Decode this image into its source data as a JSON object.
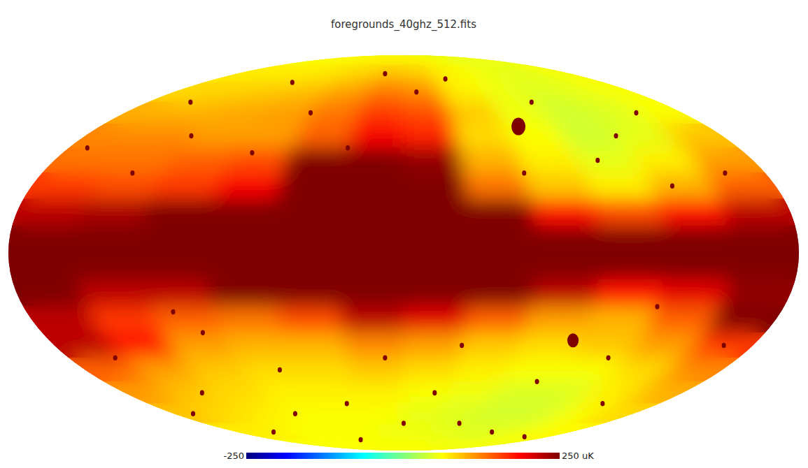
{
  "chart_data": {
    "type": "heatmap",
    "title": "foregrounds_40ghz_512.fits",
    "lon_edges": [
      180,
      150,
      120,
      90,
      60,
      30,
      0,
      -30,
      -60,
      -90,
      -120,
      -150,
      -180
    ],
    "lat_edges": [
      90,
      80,
      70,
      60,
      50,
      40,
      30,
      20,
      10,
      0,
      -10,
      -20,
      -30,
      -40,
      -50,
      -60,
      -70,
      -80,
      -90
    ],
    "cells": [
      [
        60,
        60,
        60,
        60,
        60,
        60,
        60,
        60,
        55,
        50,
        50,
        55
      ],
      [
        70,
        70,
        70,
        75,
        85,
        95,
        90,
        70,
        60,
        50,
        50,
        60
      ],
      [
        80,
        85,
        90,
        95,
        110,
        130,
        120,
        70,
        55,
        45,
        50,
        60
      ],
      [
        100,
        100,
        105,
        110,
        130,
        160,
        150,
        90,
        55,
        40,
        45,
        60
      ],
      [
        120,
        120,
        110,
        110,
        140,
        190,
        170,
        80,
        60,
        40,
        50,
        90
      ],
      [
        130,
        130,
        140,
        150,
        250,
        280,
        240,
        100,
        70,
        50,
        70,
        110
      ],
      [
        160,
        150,
        160,
        190,
        320,
        360,
        320,
        130,
        90,
        70,
        100,
        140
      ],
      [
        220,
        230,
        250,
        300,
        420,
        500,
        450,
        280,
        180,
        150,
        180,
        220
      ],
      [
        400,
        500,
        600,
        800,
        1200,
        2000,
        2000,
        1000,
        600,
        500,
        450,
        400
      ],
      [
        400,
        450,
        550,
        700,
        1000,
        1800,
        1800,
        900,
        500,
        400,
        350,
        350
      ],
      [
        250,
        220,
        220,
        260,
        350,
        500,
        450,
        300,
        220,
        180,
        200,
        240
      ],
      [
        220,
        160,
        140,
        130,
        150,
        220,
        200,
        140,
        110,
        100,
        140,
        250
      ],
      [
        220,
        180,
        110,
        100,
        100,
        120,
        110,
        90,
        80,
        90,
        110,
        160
      ],
      [
        140,
        110,
        90,
        80,
        80,
        90,
        80,
        70,
        60,
        60,
        80,
        120
      ],
      [
        110,
        90,
        80,
        70,
        70,
        70,
        60,
        55,
        45,
        45,
        70,
        100
      ],
      [
        90,
        80,
        70,
        60,
        60,
        60,
        50,
        45,
        40,
        40,
        60,
        80
      ],
      [
        70,
        70,
        60,
        60,
        60,
        55,
        55,
        50,
        45,
        50,
        60,
        65
      ],
      [
        60,
        60,
        60,
        60,
        60,
        60,
        60,
        60,
        60,
        60,
        60,
        60
      ]
    ],
    "sources": [
      {
        "lon": -68,
        "lat": 49,
        "value": 300,
        "size": 4
      },
      {
        "lon": -86,
        "lat": -33,
        "value": 300,
        "size": 3.2
      },
      {
        "lon": 150,
        "lat": 60,
        "value": 300,
        "size": 1.2
      },
      {
        "lon": 120,
        "lat": 45,
        "value": 300,
        "size": 1.2
      },
      {
        "lon": 100,
        "lat": 70,
        "value": 300,
        "size": 1.2
      },
      {
        "lon": 60,
        "lat": 55,
        "value": 300,
        "size": 1.2
      },
      {
        "lon": 20,
        "lat": 75,
        "value": 300,
        "size": 1.2
      },
      {
        "lon": -10,
        "lat": 65,
        "value": 300,
        "size": 1.2
      },
      {
        "lon": -40,
        "lat": 72,
        "value": 300,
        "size": 1.2
      },
      {
        "lon": -90,
        "lat": 60,
        "value": 300,
        "size": 1.2
      },
      {
        "lon": -120,
        "lat": 45,
        "value": 300,
        "size": 1.2
      },
      {
        "lon": -150,
        "lat": 55,
        "value": 300,
        "size": 1.2
      },
      {
        "lon": 170,
        "lat": 40,
        "value": 300,
        "size": 1.2
      },
      {
        "lon": 135,
        "lat": 30,
        "value": 300,
        "size": 1.2
      },
      {
        "lon": 80,
        "lat": 38,
        "value": 300,
        "size": 1.2
      },
      {
        "lon": -100,
        "lat": 35,
        "value": 300,
        "size": 1.2
      },
      {
        "lon": -130,
        "lat": 25,
        "value": 300,
        "size": 1.2
      },
      {
        "lon": -160,
        "lat": 30,
        "value": 300,
        "size": 1.2
      },
      {
        "lon": 155,
        "lat": -40,
        "value": 300,
        "size": 1.2
      },
      {
        "lon": 130,
        "lat": -55,
        "value": 300,
        "size": 1.2
      },
      {
        "lon": 100,
        "lat": -30,
        "value": 300,
        "size": 1.2
      },
      {
        "lon": 70,
        "lat": -45,
        "value": 300,
        "size": 1.2
      },
      {
        "lon": 40,
        "lat": -60,
        "value": 300,
        "size": 1.2
      },
      {
        "lon": 10,
        "lat": -40,
        "value": 300,
        "size": 1.2
      },
      {
        "lon": -20,
        "lat": -55,
        "value": 300,
        "size": 1.2
      },
      {
        "lon": -50,
        "lat": -70,
        "value": 300,
        "size": 1.2
      },
      {
        "lon": -80,
        "lat": -50,
        "value": 300,
        "size": 1.2
      },
      {
        "lon": -110,
        "lat": -40,
        "value": 300,
        "size": 1.2
      },
      {
        "lon": -140,
        "lat": -60,
        "value": 300,
        "size": 1.2
      },
      {
        "lon": -165,
        "lat": -35,
        "value": 300,
        "size": 1.2
      },
      {
        "lon": 140,
        "lat": -75,
        "value": 300,
        "size": 1.2
      },
      {
        "lon": 60,
        "lat": -80,
        "value": 300,
        "size": 1.2
      },
      {
        "lon": -30,
        "lat": -35,
        "value": 300,
        "size": 1.2
      },
      {
        "lon": -120,
        "lat": -20,
        "value": 300,
        "size": 1.2
      },
      {
        "lon": 110,
        "lat": -22,
        "value": 300,
        "size": 1.2
      },
      {
        "lon": 165,
        "lat": -65,
        "value": 300,
        "size": 1.2
      },
      {
        "lon": -60,
        "lat": 30,
        "value": 300,
        "size": 1.2
      },
      {
        "lon": 30,
        "lat": 40,
        "value": 300,
        "size": 1.2
      },
      {
        "lon": -150,
        "lat": -78,
        "value": 300,
        "size": 1.2
      },
      {
        "lon": 85,
        "lat": -65,
        "value": 300,
        "size": 1.2
      },
      {
        "lon": -95,
        "lat": -75,
        "value": 300,
        "size": 1.2
      },
      {
        "lon": 0,
        "lat": -70,
        "value": 300,
        "size": 1.2
      }
    ],
    "colorbar": {
      "range": [
        -250,
        250
      ],
      "ticks": [
        -250,
        {
          "value": 250,
          "label": "250 uK"
        }
      ]
    }
  }
}
